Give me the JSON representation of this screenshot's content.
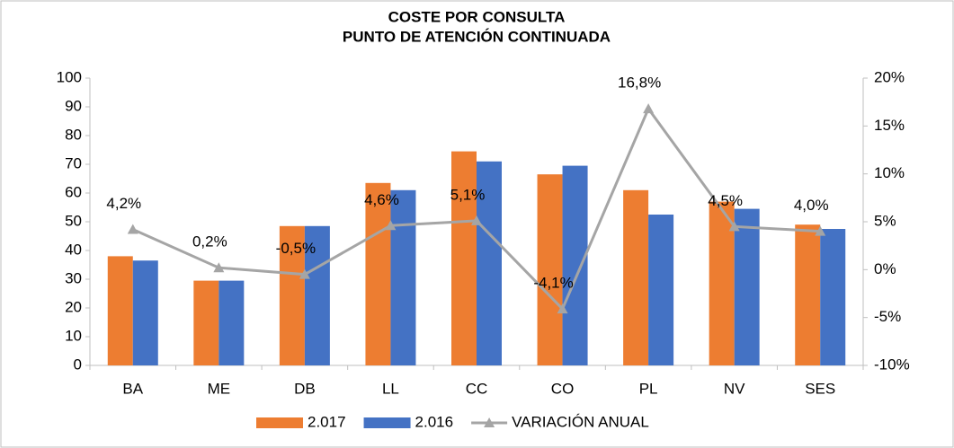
{
  "chart_data": {
    "type": "bar",
    "title_lines": [
      "COSTE POR CONSULTA",
      "PUNTO DE ATENCIÓN  CONTINUADA"
    ],
    "categories": [
      "BA",
      "ME",
      "DB",
      "LL",
      "CC",
      "CO",
      "PL",
      "NV",
      "SES"
    ],
    "series": [
      {
        "name": "2.017",
        "color": "#ed7d31",
        "values": [
          38,
          29.5,
          48.5,
          63.5,
          74.5,
          66.5,
          61,
          57,
          49
        ]
      },
      {
        "name": "2.016",
        "color": "#4472c4",
        "values": [
          36.5,
          29.5,
          48.5,
          61,
          71,
          69.5,
          52.5,
          54.5,
          47.5
        ]
      },
      {
        "name": "VARIACIÓN ANUAL",
        "color": "#a5a5a5",
        "type": "line",
        "axis": "y2",
        "values": [
          4.2,
          0.2,
          -0.5,
          4.6,
          5.1,
          -4.1,
          16.8,
          4.5,
          4.0
        ],
        "value_labels": [
          "4,2%",
          "0,2%",
          "-0,5%",
          "4,6%",
          "5,1%",
          "-4,1%",
          "16,8%",
          "4,5%",
          "4,0%"
        ]
      }
    ],
    "ylim": [
      0,
      100
    ],
    "yticks": [
      0,
      10,
      20,
      30,
      40,
      50,
      60,
      70,
      80,
      90,
      100
    ],
    "y2lim": [
      -10,
      20
    ],
    "y2ticks": [
      {
        "value": -10,
        "label": "-10%"
      },
      {
        "value": -5,
        "label": "-5%"
      },
      {
        "value": 0,
        "label": "0%"
      },
      {
        "value": 5,
        "label": "5%"
      },
      {
        "value": 10,
        "label": "10%"
      },
      {
        "value": 15,
        "label": "15%"
      },
      {
        "value": 20,
        "label": "20%"
      }
    ],
    "legend": "bottom"
  }
}
